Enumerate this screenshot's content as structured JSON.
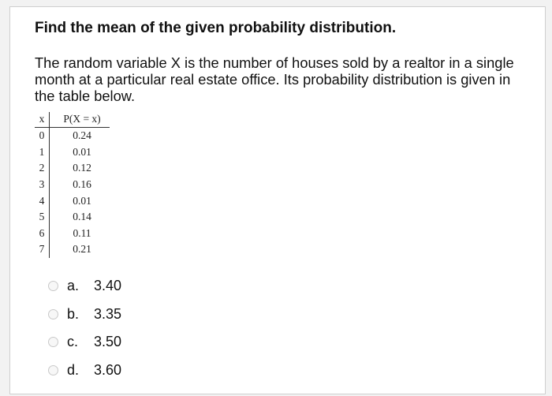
{
  "question": {
    "title": "Find the mean of the given probability distribution.",
    "body": "The random variable X is the number of houses sold by a realtor in a single month at a particular real estate office. Its probability distribution is given in the table below."
  },
  "table": {
    "headers": [
      "x",
      "P(X = x)"
    ],
    "rows": [
      {
        "x": "0",
        "p": "0.24"
      },
      {
        "x": "1",
        "p": "0.01"
      },
      {
        "x": "2",
        "p": "0.12"
      },
      {
        "x": "3",
        "p": "0.16"
      },
      {
        "x": "4",
        "p": "0.01"
      },
      {
        "x": "5",
        "p": "0.14"
      },
      {
        "x": "6",
        "p": "0.11"
      },
      {
        "x": "7",
        "p": "0.21"
      }
    ]
  },
  "options": [
    {
      "letter": "a.",
      "value": "3.40"
    },
    {
      "letter": "b.",
      "value": "3.35"
    },
    {
      "letter": "c.",
      "value": "3.50"
    },
    {
      "letter": "d.",
      "value": "3.60"
    }
  ]
}
